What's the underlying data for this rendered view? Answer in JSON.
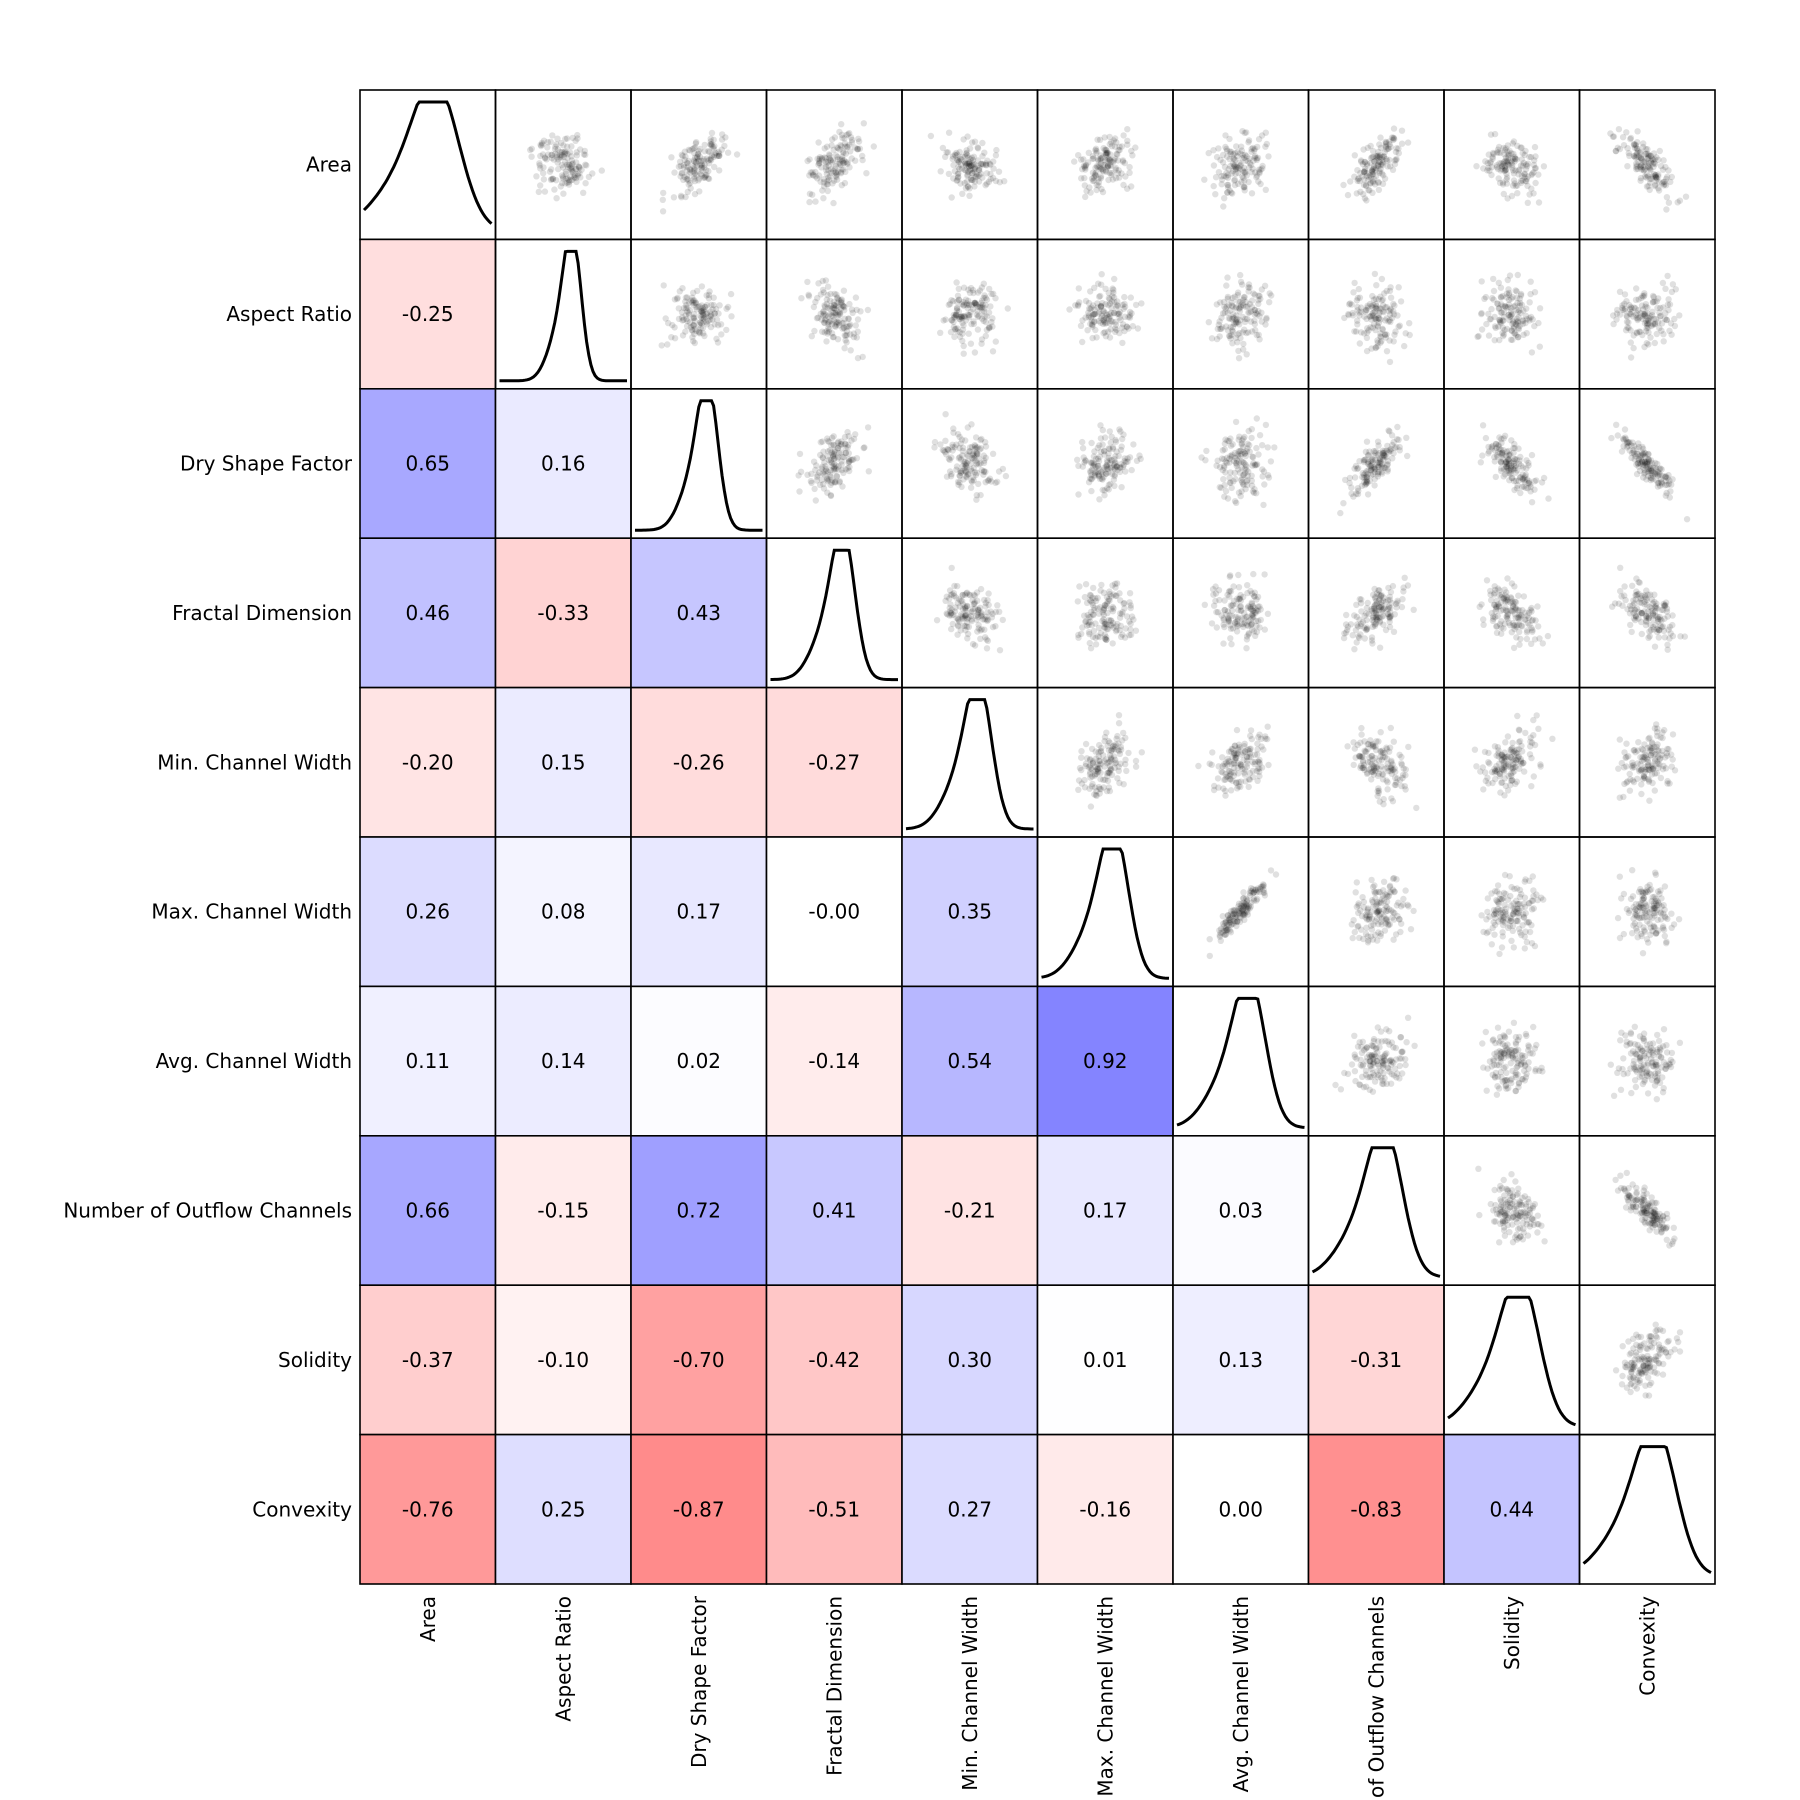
{
  "chart_data": {
    "type": "scatter-matrix",
    "variables": [
      "Area",
      "Aspect Ratio",
      "Dry Shape Factor",
      "Fractal Dimension",
      "Min. Channel Width",
      "Max. Channel Width",
      "Avg. Channel Width",
      "Number of Outflow Channels",
      "Solidity",
      "Convexity"
    ],
    "column_labels_visible": [
      "Area",
      "Aspect Ratio",
      "Dry Shape Factor",
      "Fractal Dimension",
      "Min. Channel Width",
      "Max. Channel Width",
      "Avg. Channel Width",
      "of Outflow Channels",
      "Solidity",
      "Convexity"
    ],
    "correlation_labels": [
      [
        "",
        "",
        "",
        "",
        "",
        "",
        "",
        "",
        "",
        ""
      ],
      [
        "-0.25",
        "",
        "",
        "",
        "",
        "",
        "",
        "",
        "",
        ""
      ],
      [
        "0.65",
        "0.16",
        "",
        "",
        "",
        "",
        "",
        "",
        "",
        ""
      ],
      [
        "0.46",
        "-0.33",
        "0.43",
        "",
        "",
        "",
        "",
        "",
        "",
        ""
      ],
      [
        "-0.20",
        "0.15",
        "-0.26",
        "-0.27",
        "",
        "",
        "",
        "",
        "",
        ""
      ],
      [
        "0.26",
        "0.08",
        "0.17",
        "-0.00",
        "0.35",
        "",
        "",
        "",
        "",
        ""
      ],
      [
        "0.11",
        "0.14",
        "0.02",
        "-0.14",
        "0.54",
        "0.92",
        "",
        "",
        "",
        ""
      ],
      [
        "0.66",
        "-0.15",
        "0.72",
        "0.41",
        "-0.21",
        "0.17",
        "0.03",
        "",
        "",
        ""
      ],
      [
        "-0.37",
        "-0.10",
        "-0.70",
        "-0.42",
        "0.30",
        "0.01",
        "0.13",
        "-0.31",
        "",
        ""
      ],
      [
        "-0.76",
        "0.25",
        "-0.87",
        "-0.51",
        "0.27",
        "-0.16",
        "0.00",
        "-0.83",
        "0.44",
        ""
      ]
    ],
    "correlations": [
      [
        1.0,
        -0.25,
        0.65,
        0.46,
        -0.2,
        0.26,
        0.11,
        0.66,
        -0.37,
        -0.76
      ],
      [
        -0.25,
        1.0,
        0.16,
        -0.33,
        0.15,
        0.08,
        0.14,
        -0.15,
        -0.1,
        0.25
      ],
      [
        0.65,
        0.16,
        1.0,
        0.43,
        -0.26,
        0.17,
        0.02,
        0.72,
        -0.7,
        -0.87
      ],
      [
        0.46,
        -0.33,
        0.43,
        1.0,
        -0.27,
        -0.0,
        -0.14,
        0.41,
        -0.42,
        -0.51
      ],
      [
        -0.2,
        0.15,
        -0.26,
        -0.27,
        1.0,
        0.35,
        0.54,
        -0.21,
        0.3,
        0.27
      ],
      [
        0.26,
        0.08,
        0.17,
        -0.0,
        0.35,
        1.0,
        0.92,
        0.17,
        0.01,
        -0.16
      ],
      [
        0.11,
        0.14,
        0.02,
        -0.14,
        0.54,
        0.92,
        1.0,
        0.03,
        0.13,
        0.0
      ],
      [
        0.66,
        -0.15,
        0.72,
        0.41,
        -0.21,
        0.17,
        0.03,
        1.0,
        -0.31,
        -0.83
      ],
      [
        -0.37,
        -0.1,
        -0.7,
        -0.42,
        0.3,
        0.01,
        0.13,
        -0.31,
        1.0,
        0.44
      ],
      [
        -0.76,
        0.25,
        -0.87,
        -0.51,
        0.27,
        -0.16,
        0.0,
        -0.83,
        0.44,
        1.0
      ]
    ],
    "lower_triangle": "correlation heatmap (blue positive, red negative)",
    "upper_triangle": "pairwise scatter plots",
    "diagonal": "density curves",
    "colors": {
      "positive": "#0000ff",
      "negative": "#ff0000",
      "points": "#000000"
    }
  }
}
